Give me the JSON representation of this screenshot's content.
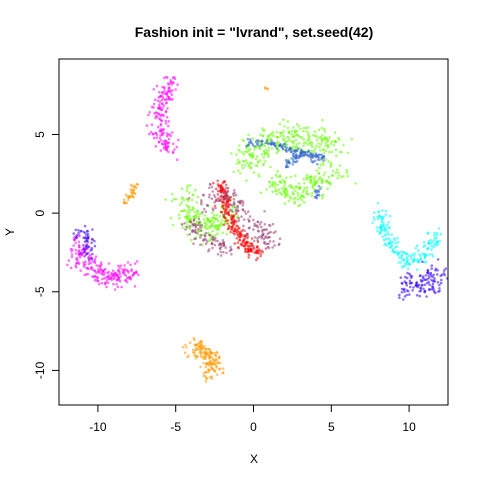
{
  "chart_data": {
    "type": "scatter",
    "title": "Fashion init = \"lvrand\", set.seed(42)",
    "xlabel": "X",
    "ylabel": "Y",
    "xlim": [
      -12.5,
      12.5
    ],
    "ylim": [
      -12.2,
      9.8
    ],
    "xticks": [
      -10,
      -5,
      0,
      5,
      10
    ],
    "yticks": [
      -10,
      -5,
      0,
      5
    ],
    "grid": false,
    "legend": "none",
    "series": [
      {
        "color": "#ff00ff",
        "clusters": [
          {
            "path": [
              [
                -5.3,
                8.5
              ],
              [
                -5.7,
                7.5
              ],
              [
                -6.2,
                6.3
              ],
              [
                -5.9,
                5.0
              ],
              [
                -5.2,
                3.9
              ]
            ],
            "width": 0.7,
            "count": 170
          },
          {
            "path": [
              [
                -11.3,
                -1.8
              ],
              [
                -11.0,
                -3.0
              ],
              [
                -10.2,
                -3.6
              ],
              [
                -9.0,
                -4.1
              ],
              [
                -7.6,
                -3.9
              ]
            ],
            "width": 0.8,
            "count": 220
          }
        ]
      },
      {
        "color": "#00ffff",
        "clusters": [
          {
            "path": [
              [
                8.0,
                0.2
              ],
              [
                8.7,
                -2.0
              ],
              [
                9.8,
                -3.0
              ],
              [
                11.0,
                -2.8
              ],
              [
                11.8,
                -1.5
              ]
            ],
            "width": 0.6,
            "count": 190
          }
        ]
      },
      {
        "color": "#3300ff",
        "clusters": [
          {
            "path": [
              [
                9.6,
                -4.4
              ],
              [
                10.2,
                -4.9
              ],
              [
                11.2,
                -4.5
              ],
              [
                11.9,
                -3.7
              ]
            ],
            "width": 0.9,
            "count": 120
          },
          {
            "path": [
              [
                -11.5,
                -1.2
              ],
              [
                -10.8,
                -1.4
              ],
              [
                -10.6,
                -2.6
              ]
            ],
            "width": 0.5,
            "count": 50
          }
        ]
      },
      {
        "color": "#ff9900",
        "clusters": [
          {
            "path": [
              [
                -4.0,
                -8.3
              ],
              [
                -3.2,
                -8.8
              ],
              [
                -2.6,
                -9.4
              ],
              [
                -2.7,
                -10.4
              ]
            ],
            "width": 0.7,
            "count": 150
          },
          {
            "path": [
              [
                -7.6,
                1.8
              ],
              [
                -7.9,
                1.0
              ],
              [
                -8.4,
                0.6
              ]
            ],
            "width": 0.3,
            "count": 35
          },
          {
            "path": [
              [
                0.7,
                8.0
              ],
              [
                0.9,
                7.9
              ]
            ],
            "width": 0.1,
            "count": 4
          }
        ]
      },
      {
        "color": "#66ff00",
        "clusters": [
          {
            "path": [
              [
                -4.5,
                1.0
              ],
              [
                -4.0,
                -0.6
              ],
              [
                -2.6,
                -1.0
              ],
              [
                -1.6,
                0.2
              ]
            ],
            "width": 1.0,
            "count": 200
          },
          {
            "path": [
              [
                -0.8,
                3.0
              ],
              [
                1.0,
                4.5
              ],
              [
                3.0,
                4.8
              ],
              [
                5.2,
                4.2
              ]
            ],
            "width": 1.2,
            "count": 280
          },
          {
            "path": [
              [
                1.0,
                2.0
              ],
              [
                2.5,
                1.2
              ],
              [
                4.2,
                2.0
              ],
              [
                5.5,
                2.8
              ]
            ],
            "width": 0.9,
            "count": 180
          }
        ]
      },
      {
        "color": "#ff0000",
        "clusters": [
          {
            "path": [
              [
                -2.1,
                1.8
              ],
              [
                -1.8,
                0.4
              ],
              [
                -1.2,
                -1.0
              ],
              [
                -0.3,
                -2.2
              ],
              [
                0.5,
                -2.6
              ]
            ],
            "width": 0.5,
            "count": 240
          }
        ]
      },
      {
        "color": "#3366cc",
        "clusters": [
          {
            "path": [
              [
                -0.5,
                4.4
              ],
              [
                1.0,
                4.5
              ],
              [
                2.5,
                4.0
              ],
              [
                3.7,
                3.7
              ],
              [
                4.5,
                3.5
              ]
            ],
            "width": 0.25,
            "count": 110
          },
          {
            "path": [
              [
                2.0,
                3.0
              ],
              [
                3.3,
                3.8
              ],
              [
                4.2,
                3.2
              ]
            ],
            "width": 0.3,
            "count": 60
          },
          {
            "path": [
              [
                4.0,
                1.0
              ],
              [
                4.3,
                1.7
              ]
            ],
            "width": 0.2,
            "count": 15
          }
        ]
      },
      {
        "color": "#994477",
        "clusters": [
          {
            "path": [
              [
                -3.5,
                0.5
              ],
              [
                -2.4,
                1.0
              ],
              [
                -1.5,
                1.3
              ],
              [
                -0.3,
                -0.3
              ],
              [
                0.6,
                -1.2
              ],
              [
                1.0,
                -2.2
              ]
            ],
            "width": 0.9,
            "count": 160
          },
          {
            "path": [
              [
                -4.2,
                -0.6
              ],
              [
                -3.0,
                -1.8
              ],
              [
                -1.5,
                -2.4
              ]
            ],
            "width": 0.6,
            "count": 90
          }
        ]
      }
    ]
  }
}
